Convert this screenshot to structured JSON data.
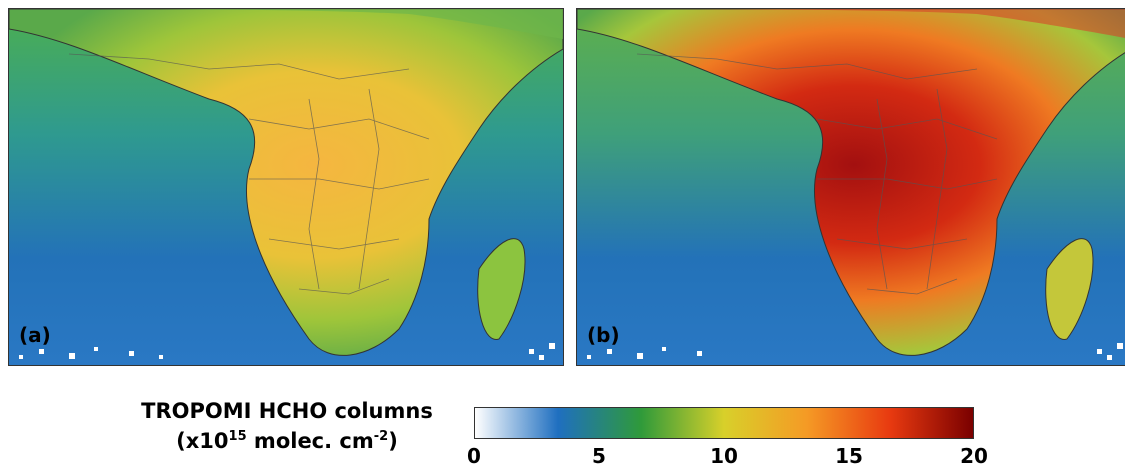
{
  "panels": [
    {
      "label": "(a)",
      "intensity": "moderate"
    },
    {
      "label": "(b)",
      "intensity": "high"
    }
  ],
  "colorbar": {
    "title_line1": "TROPOMI HCHO columns",
    "title_prefix": "(x10",
    "title_exp1": "15",
    "title_mid": " molec. cm",
    "title_exp2": "-2",
    "title_suffix": ")",
    "min": 0,
    "max": 20,
    "ticks": [
      "0",
      "5",
      "10",
      "15",
      "20"
    ],
    "colors": [
      "#ffffff",
      "#1f6fc0",
      "#2f9a3a",
      "#d8d02a",
      "#f59a25",
      "#e83a10",
      "#7a0000"
    ]
  }
}
